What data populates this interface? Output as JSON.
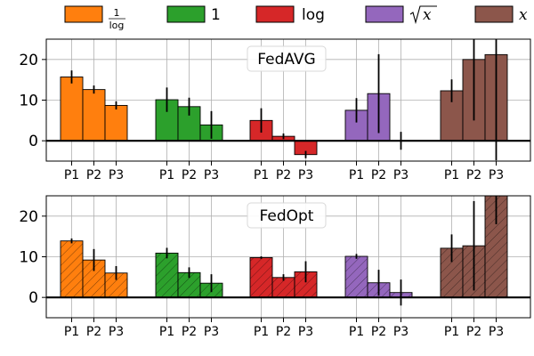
{
  "chart_data": {
    "type": "bar",
    "legend": {
      "placement": "top",
      "entries": [
        {
          "name": "1/log",
          "numerator": "1",
          "denominator": "log",
          "color": "#ff7f0e"
        },
        {
          "name": "1",
          "label": "1",
          "color": "#2ca02c"
        },
        {
          "name": "log",
          "label": "log",
          "color": "#d62728"
        },
        {
          "name": "sqrt(x)",
          "label": "x",
          "color": "#9467bd"
        },
        {
          "name": "x",
          "label": "x",
          "color": "#8c564b"
        }
      ]
    },
    "categories": [
      "P1",
      "P2",
      "P3"
    ],
    "panels": [
      {
        "title": "FedAVG",
        "hatched": false,
        "ylim": [
          -5,
          25
        ],
        "yticks": [
          0,
          10,
          20
        ],
        "series": [
          {
            "name": "1/log",
            "values": [
              15.7,
              12.6,
              8.7
            ],
            "errors": [
              1.6,
              1.0,
              1.0
            ]
          },
          {
            "name": "1",
            "values": [
              10.1,
              8.4,
              3.9
            ],
            "errors": [
              3.0,
              2.2,
              3.4
            ]
          },
          {
            "name": "log",
            "values": [
              5.0,
              1.1,
              -3.4
            ],
            "errors": [
              3.0,
              0.7,
              0.9
            ]
          },
          {
            "name": "sqrt(x)",
            "values": [
              7.5,
              11.6,
              0.0
            ],
            "errors": [
              3.0,
              9.7,
              2.2
            ]
          },
          {
            "name": "x",
            "values": [
              12.3,
              20.0,
              21.2
            ],
            "errors": [
              2.8,
              15.0,
              26.0
            ]
          }
        ]
      },
      {
        "title": "FedOpt",
        "hatched": true,
        "ylim": [
          -5,
          25
        ],
        "yticks": [
          0,
          10,
          20
        ],
        "series": [
          {
            "name": "1/log",
            "values": [
              13.9,
              9.2,
              6.0
            ],
            "errors": [
              0.6,
              2.7,
              1.7
            ]
          },
          {
            "name": "1",
            "values": [
              10.9,
              6.1,
              3.5
            ],
            "errors": [
              1.3,
              1.3,
              2.2
            ]
          },
          {
            "name": "log",
            "values": [
              9.8,
              4.9,
              6.3
            ],
            "errors": [
              0.3,
              0.8,
              2.6
            ]
          },
          {
            "name": "sqrt(x)",
            "values": [
              10.1,
              3.6,
              1.2
            ],
            "errors": [
              0.6,
              3.2,
              3.2
            ]
          },
          {
            "name": "x",
            "values": [
              12.1,
              12.7,
              25.0
            ],
            "errors": [
              3.4,
              11.0,
              7.0
            ]
          }
        ]
      }
    ]
  }
}
